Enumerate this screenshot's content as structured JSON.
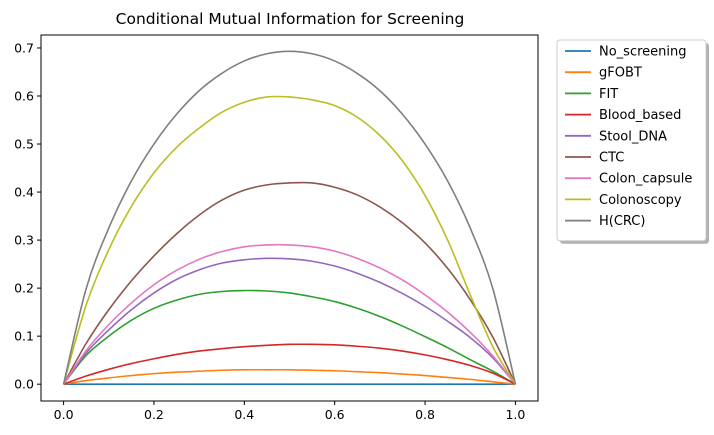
{
  "chart_data": {
    "type": "line",
    "title": "Conditional Mutual Information for Screening",
    "xlabel": "",
    "ylabel": "",
    "xlim": [
      -0.05,
      1.05
    ],
    "ylim": [
      -0.035,
      0.727
    ],
    "xticks": [
      "0.0",
      "0.2",
      "0.4",
      "0.6",
      "0.8",
      "1.0"
    ],
    "yticks": [
      "0.0",
      "0.1",
      "0.2",
      "0.3",
      "0.4",
      "0.5",
      "0.6",
      "0.7"
    ],
    "grid": false,
    "legend_placement": "outside-top-right",
    "x": [
      0.0,
      0.05,
      0.1,
      0.15,
      0.2,
      0.25,
      0.3,
      0.35,
      0.4,
      0.45,
      0.5,
      0.55,
      0.6,
      0.65,
      0.7,
      0.75,
      0.8,
      0.85,
      0.9,
      0.95,
      1.0
    ],
    "series": [
      {
        "name": "No_screening",
        "color": "#1f77b4",
        "values": [
          0.0,
          0.0,
          0.0,
          0.0,
          0.0,
          0.0,
          0.0,
          0.0,
          0.0,
          0.0,
          0.0,
          0.0,
          0.0,
          0.0,
          0.0,
          0.0,
          0.0,
          0.0,
          0.0,
          0.0,
          0.0
        ]
      },
      {
        "name": "gFOBT",
        "color": "#ff7f0e",
        "values": [
          0.0,
          0.0075,
          0.013,
          0.018,
          0.022,
          0.025,
          0.027,
          0.029,
          0.03,
          0.03,
          0.03,
          0.029,
          0.028,
          0.026,
          0.024,
          0.021,
          0.018,
          0.014,
          0.01,
          0.005,
          0.0
        ]
      },
      {
        "name": "FIT",
        "color": "#2ca02c",
        "values": [
          0.0,
          0.06,
          0.1,
          0.133,
          0.158,
          0.175,
          0.187,
          0.193,
          0.195,
          0.194,
          0.19,
          0.182,
          0.172,
          0.158,
          0.141,
          0.121,
          0.099,
          0.076,
          0.051,
          0.027,
          0.0
        ]
      },
      {
        "name": "Blood_based",
        "color": "#d62728",
        "values": [
          0.0,
          0.017,
          0.031,
          0.043,
          0.053,
          0.062,
          0.069,
          0.074,
          0.078,
          0.081,
          0.083,
          0.083,
          0.082,
          0.079,
          0.075,
          0.069,
          0.061,
          0.051,
          0.039,
          0.023,
          0.0
        ]
      },
      {
        "name": "Stool_DNA",
        "color": "#9467bd",
        "values": [
          0.0,
          0.065,
          0.113,
          0.155,
          0.19,
          0.218,
          0.238,
          0.252,
          0.259,
          0.262,
          0.261,
          0.256,
          0.246,
          0.231,
          0.212,
          0.189,
          0.162,
          0.131,
          0.097,
          0.055,
          0.0
        ]
      },
      {
        "name": "CTC",
        "color": "#8c564b",
        "values": [
          0.0,
          0.085,
          0.155,
          0.215,
          0.267,
          0.313,
          0.352,
          0.383,
          0.404,
          0.415,
          0.419,
          0.419,
          0.41,
          0.394,
          0.369,
          0.336,
          0.294,
          0.241,
          0.176,
          0.098,
          0.0
        ]
      },
      {
        "name": "Colon_capsule",
        "color": "#e377c2",
        "values": [
          0.0,
          0.07,
          0.124,
          0.169,
          0.207,
          0.237,
          0.26,
          0.276,
          0.286,
          0.29,
          0.29,
          0.286,
          0.277,
          0.262,
          0.242,
          0.217,
          0.186,
          0.15,
          0.108,
          0.059,
          0.0
        ]
      },
      {
        "name": "Colonoscopy",
        "color": "#bcbd22",
        "values": [
          0.0,
          0.165,
          0.28,
          0.37,
          0.44,
          0.493,
          0.533,
          0.566,
          0.587,
          0.598,
          0.598,
          0.592,
          0.58,
          0.556,
          0.518,
          0.465,
          0.393,
          0.3,
          0.186,
          0.078,
          0.0
        ]
      },
      {
        "name": "H(CRC)",
        "color": "#7f7f7f",
        "values": [
          0.0,
          0.199,
          0.325,
          0.423,
          0.5,
          0.562,
          0.611,
          0.647,
          0.673,
          0.688,
          0.693,
          0.688,
          0.673,
          0.647,
          0.611,
          0.562,
          0.5,
          0.423,
          0.325,
          0.199,
          0.0
        ]
      }
    ]
  }
}
